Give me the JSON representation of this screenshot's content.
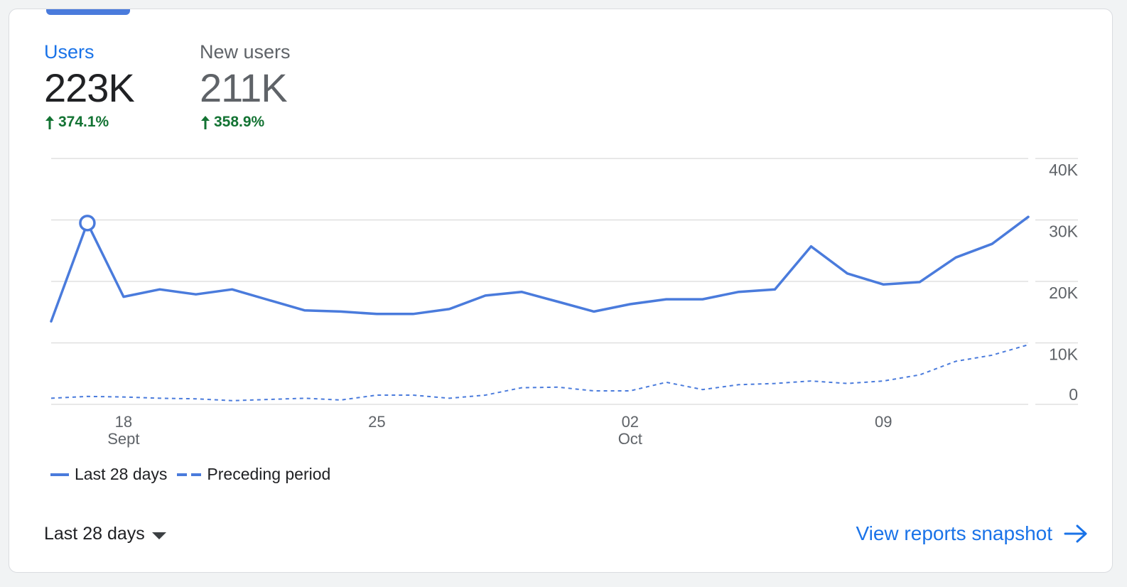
{
  "colors": {
    "accent": "#4a7bdc",
    "link": "#1a73e8",
    "positive": "#137333",
    "gridline": "#e0e0e0",
    "muted_text": "#5f6368",
    "primary_text": "#202124"
  },
  "metrics": [
    {
      "label": "Users",
      "value": "223K",
      "change": "374.1%",
      "direction": "up",
      "selected": true
    },
    {
      "label": "New users",
      "value": "211K",
      "change": "358.9%",
      "direction": "up",
      "selected": false
    }
  ],
  "chart_data": {
    "type": "line",
    "ylim": [
      0,
      40000
    ],
    "yticks": [
      0,
      10000,
      20000,
      30000,
      40000
    ],
    "ytick_labels": [
      "0",
      "10K",
      "20K",
      "30K",
      "40K"
    ],
    "x_dates": [
      "2023-09-16",
      "2023-09-17",
      "2023-09-18",
      "2023-09-19",
      "2023-09-20",
      "2023-09-21",
      "2023-09-22",
      "2023-09-23",
      "2023-09-24",
      "2023-09-25",
      "2023-09-26",
      "2023-09-27",
      "2023-09-28",
      "2023-09-29",
      "2023-09-30",
      "2023-10-01",
      "2023-10-02",
      "2023-10-03",
      "2023-10-04",
      "2023-10-05",
      "2023-10-06",
      "2023-10-07",
      "2023-10-08",
      "2023-10-09",
      "2023-10-10",
      "2023-10-11",
      "2023-10-12",
      "2023-10-13"
    ],
    "xtick_labels": [
      {
        "date": "2023-09-18",
        "day": "18",
        "month": "Sept"
      },
      {
        "date": "2023-09-25",
        "day": "25",
        "month": ""
      },
      {
        "date": "2023-10-02",
        "day": "02",
        "month": "Oct"
      },
      {
        "date": "2023-10-09",
        "day": "09",
        "month": ""
      }
    ],
    "series": [
      {
        "name": "Last 28 days",
        "style": "solid",
        "highlight_date": "2023-09-17",
        "values": [
          13500,
          29500,
          17500,
          18700,
          17900,
          18700,
          17000,
          15300,
          15100,
          14700,
          14700,
          15500,
          17700,
          18300,
          16700,
          15100,
          16300,
          17100,
          17100,
          18300,
          18700,
          25700,
          21300,
          19500,
          19900,
          23900,
          26100,
          30500
        ]
      },
      {
        "name": "Preceding period",
        "style": "dashed",
        "values": [
          1000,
          1300,
          1200,
          1000,
          900,
          600,
          800,
          1000,
          700,
          1500,
          1500,
          1000,
          1500,
          2700,
          2800,
          2200,
          2200,
          3600,
          2400,
          3200,
          3400,
          3800,
          3400,
          3800,
          4800,
          7000,
          8000,
          9700
        ]
      }
    ]
  },
  "legend": {
    "solid_label": "Last 28 days",
    "dashed_label": "Preceding period"
  },
  "footer": {
    "range_label": "Last 28 days",
    "link_label": "View reports snapshot"
  }
}
